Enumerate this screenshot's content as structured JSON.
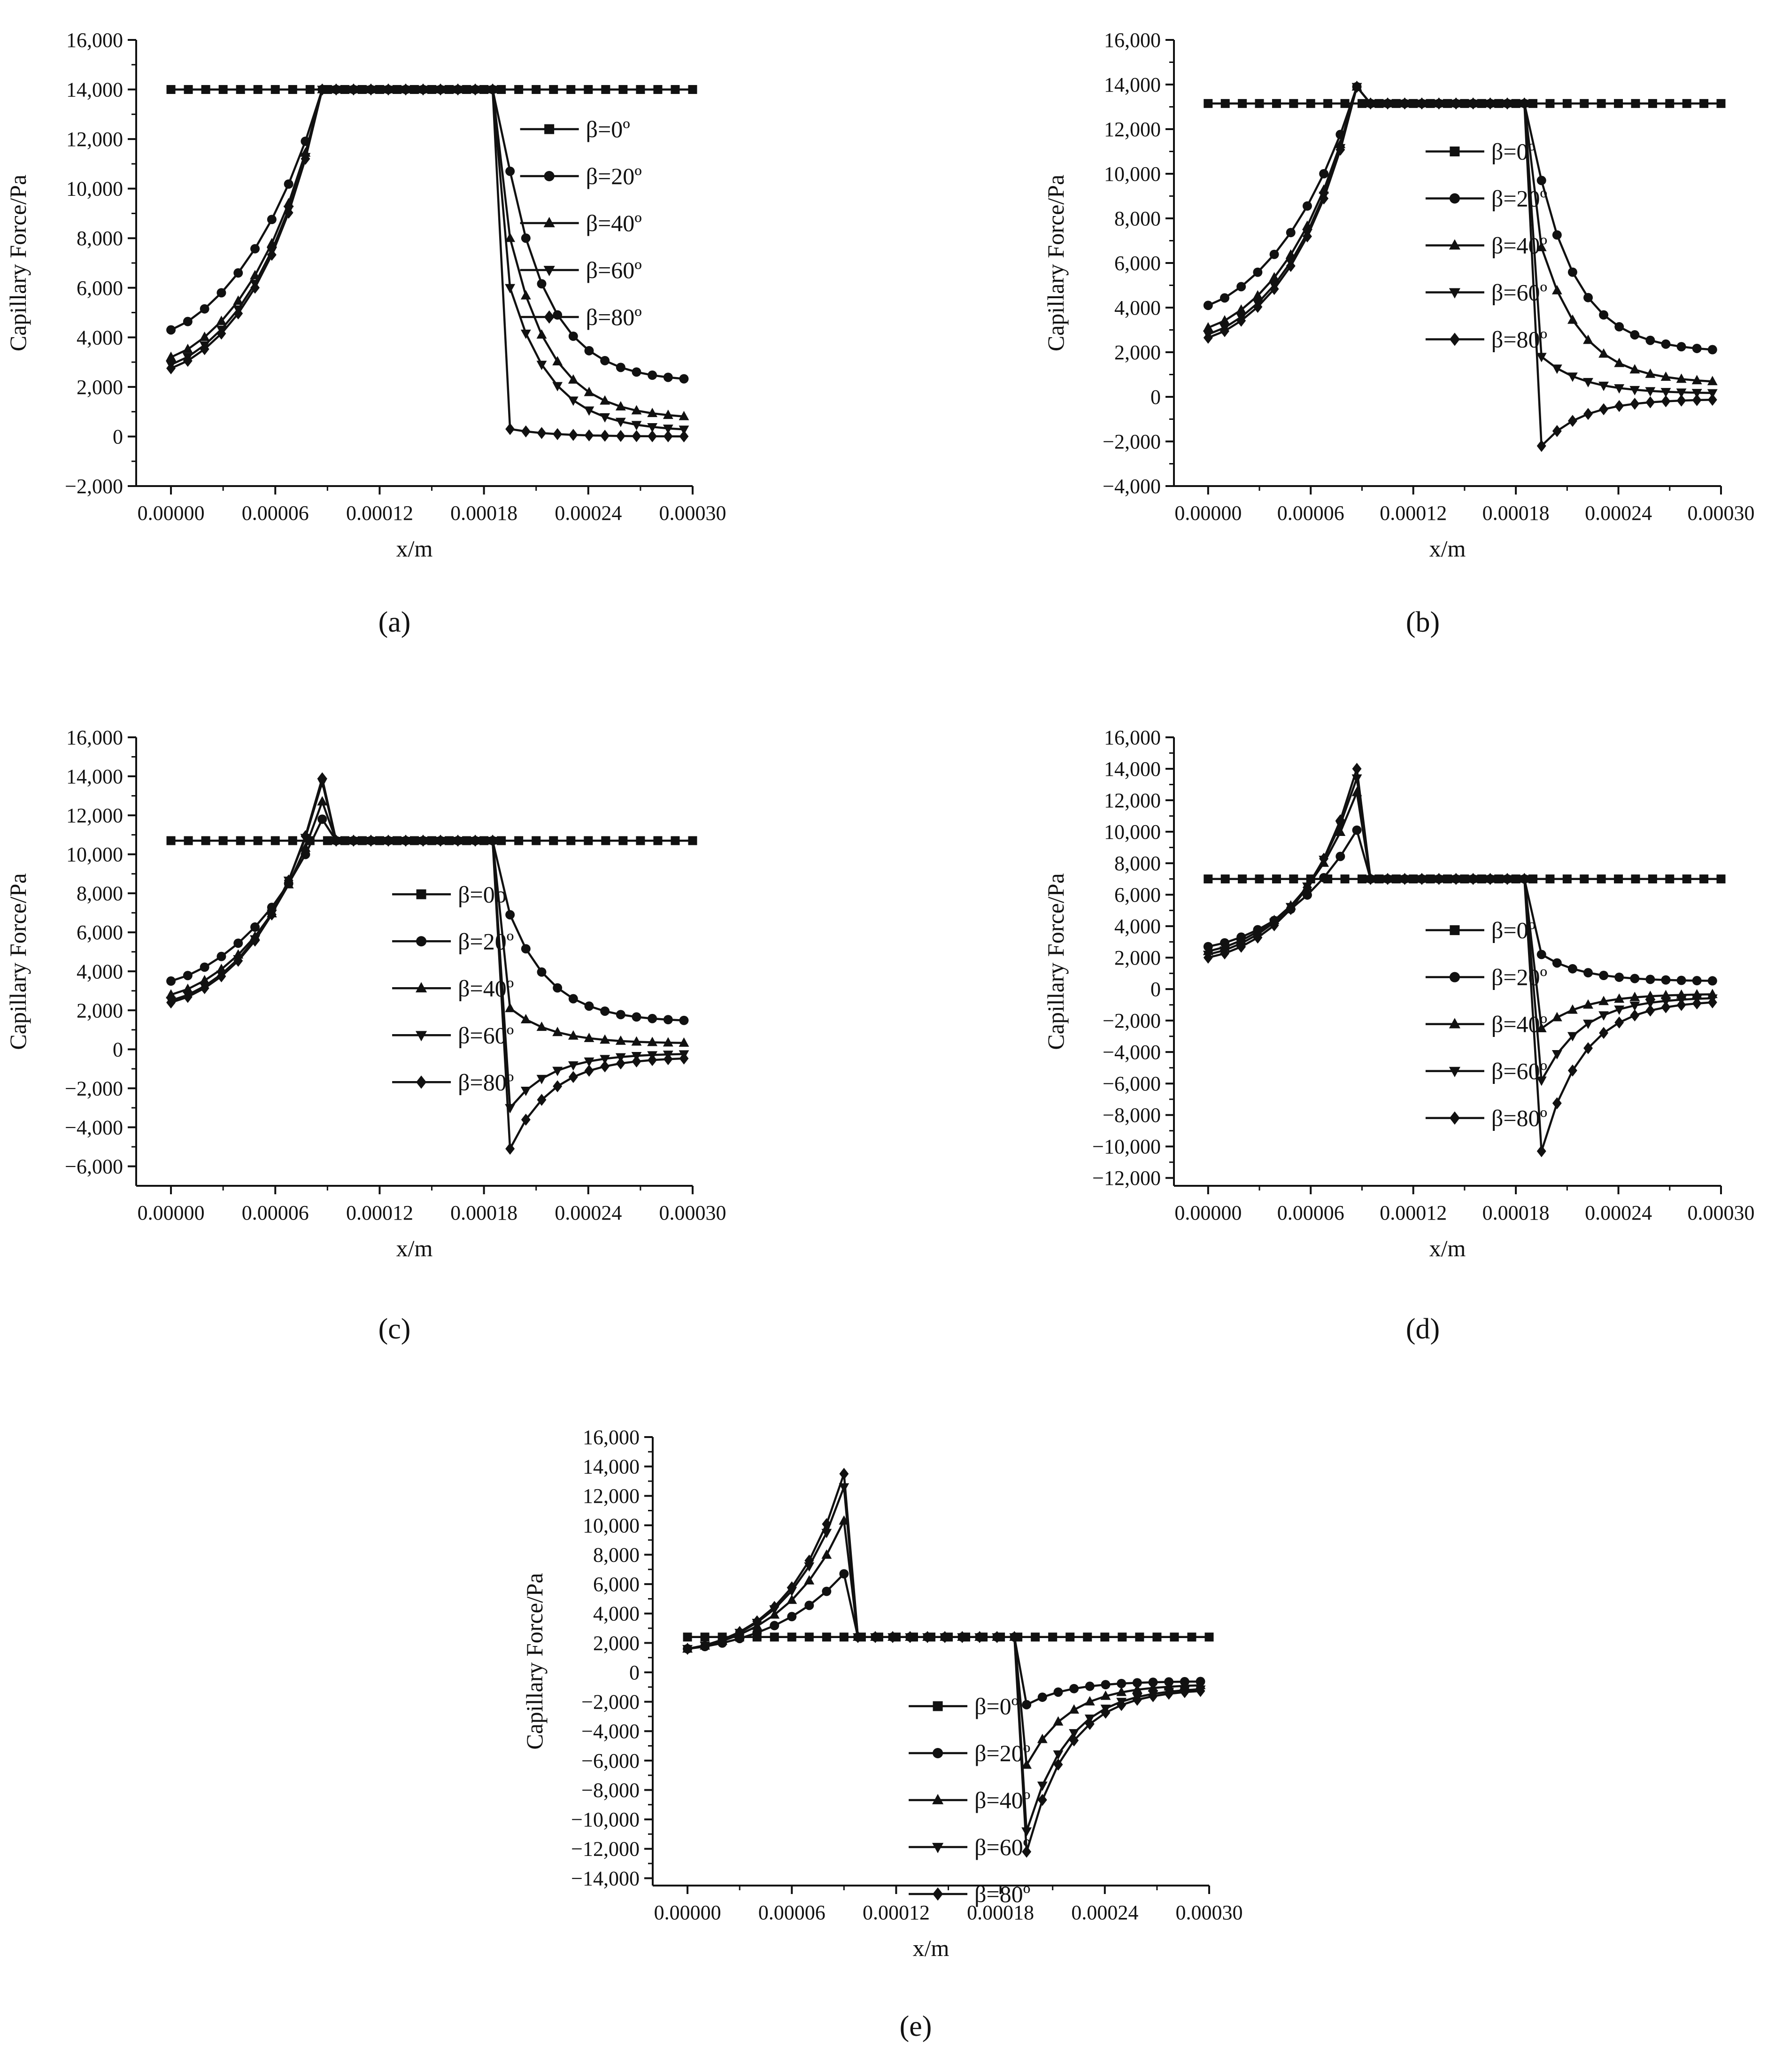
{
  "chart_data": [
    {
      "type": "line",
      "caption": "(a)",
      "caption_letter": "a",
      "xlabel": "x/m",
      "ylabel": "Capillary Force/Pa",
      "xlim": [
        -2e-05,
        0.0003
      ],
      "ylim": [
        -2000,
        16000
      ],
      "xticks": [
        0,
        6e-05,
        0.00012,
        0.00018,
        0.00024,
        0.0003
      ],
      "xtick_labels": [
        "0.00000",
        "0.00006",
        "0.00012",
        "0.00018",
        "0.00024",
        "0.00030"
      ],
      "yticks": [
        -2000,
        0,
        2000,
        4000,
        6000,
        8000,
        10000,
        12000,
        14000,
        16000
      ],
      "ytick_labels": [
        "−2,000",
        "0",
        "2,000",
        "4,000",
        "6,000",
        "8,000",
        "10,000",
        "12,000",
        "14,000",
        "16,000"
      ],
      "legend_position": "right",
      "legend_from_top": 0.2,
      "flat_level": 14000,
      "peak_x": 8.7e-05,
      "series": [
        {
          "name": "β=0º",
          "marker": "square",
          "values": "constant 14000"
        },
        {
          "name": "β=20º",
          "marker": "circle",
          "start": 4300,
          "peak": 14000,
          "drop": 10700,
          "end": 2200
        },
        {
          "name": "β=40º",
          "marker": "triangle-up",
          "start": 3200,
          "peak": 14000,
          "drop": 8000,
          "end": 700
        },
        {
          "name": "β=60º",
          "marker": "triangle-down",
          "start": 2900,
          "peak": 14000,
          "drop": 6000,
          "end": 200
        },
        {
          "name": "β=80º",
          "marker": "diamond",
          "start": 2750,
          "peak": 14000,
          "drop": 300,
          "end": 0
        }
      ]
    },
    {
      "type": "line",
      "caption": "(b)",
      "caption_letter": "b",
      "xlabel": "x/m",
      "ylabel": "Capillary Force/Pa",
      "xlim": [
        -2e-05,
        0.0003
      ],
      "ylim": [
        -4000,
        16000
      ],
      "xticks": [
        0,
        6e-05,
        0.00012,
        0.00018,
        0.00024,
        0.0003
      ],
      "xtick_labels": [
        "0.00000",
        "0.00006",
        "0.00012",
        "0.00018",
        "0.00024",
        "0.00030"
      ],
      "yticks": [
        -4000,
        -2000,
        0,
        2000,
        4000,
        6000,
        8000,
        10000,
        12000,
        14000,
        16000
      ],
      "ytick_labels": [
        "−4,000",
        "−2,000",
        "0",
        "2,000",
        "4,000",
        "6,000",
        "8,000",
        "10,000",
        "12,000",
        "14,000",
        "16,000"
      ],
      "legend_position": "center",
      "legend_from_top": 0.25,
      "flat_level": 13150,
      "peak_x": 8.7e-05,
      "series": [
        {
          "name": "β=0º",
          "marker": "square",
          "values": "constant 13150"
        },
        {
          "name": "β=20º",
          "marker": "circle",
          "start": 4100,
          "peak": 13900,
          "drop": 9700,
          "end": 2000
        },
        {
          "name": "β=40º",
          "marker": "triangle-up",
          "start": 3100,
          "peak": 13900,
          "drop": 6700,
          "end": 600
        },
        {
          "name": "β=60º",
          "marker": "triangle-down",
          "start": 2800,
          "peak": 13900,
          "drop": 1800,
          "end": 150
        },
        {
          "name": "β=80º",
          "marker": "diamond",
          "start": 2650,
          "peak": 13900,
          "drop": -2200,
          "end": -100
        }
      ]
    },
    {
      "type": "line",
      "caption": "(c)",
      "caption_letter": "c",
      "xlabel": "x/m",
      "ylabel": "Capillary Force/Pa",
      "xlim": [
        -2e-05,
        0.0003
      ],
      "ylim": [
        -7000,
        16000
      ],
      "xticks": [
        0,
        6e-05,
        0.00012,
        0.00018,
        0.00024,
        0.0003
      ],
      "xtick_labels": [
        "0.00000",
        "0.00006",
        "0.00012",
        "0.00018",
        "0.00024",
        "0.00030"
      ],
      "yticks": [
        -6000,
        -4000,
        -2000,
        0,
        2000,
        4000,
        6000,
        8000,
        10000,
        12000,
        14000,
        16000
      ],
      "ytick_labels": [
        "−6,000",
        "−4,000",
        "−2,000",
        "0",
        "2,000",
        "4,000",
        "6,000",
        "8,000",
        "10,000",
        "12,000",
        "14,000",
        "16,000"
      ],
      "legend_position": "center",
      "legend_from_top": 0.35,
      "flat_level": 10700,
      "peak_x": 8.7e-05,
      "series": [
        {
          "name": "β=0o",
          "marker": "square",
          "values": "constant 10700"
        },
        {
          "name": "β=20º",
          "marker": "circle",
          "start": 3500,
          "peak": 11800,
          "drop": 6900,
          "end": 1400
        },
        {
          "name": "β=40º",
          "marker": "triangle-up",
          "start": 2800,
          "peak": 12700,
          "drop": 2100,
          "end": 300
        },
        {
          "name": "β=60º",
          "marker": "triangle-down",
          "start": 2500,
          "peak": 13700,
          "drop": -3000,
          "end": -200
        },
        {
          "name": "β=80º",
          "marker": "diamond",
          "start": 2400,
          "peak": 13900,
          "drop": -5100,
          "end": -400
        }
      ]
    },
    {
      "type": "line",
      "caption": "(d)",
      "caption_letter": "d",
      "xlabel": "x/m",
      "ylabel": "Capillary Force/Pa",
      "xlim": [
        -2e-05,
        0.0003
      ],
      "ylim": [
        -12500,
        16000
      ],
      "xticks": [
        0,
        6e-05,
        0.00012,
        0.00018,
        0.00024,
        0.0003
      ],
      "xtick_labels": [
        "0.00000",
        "0.00006",
        "0.00012",
        "0.00018",
        "0.00024",
        "0.00030"
      ],
      "yticks": [
        -12000,
        -10000,
        -8000,
        -6000,
        -4000,
        -2000,
        0,
        2000,
        4000,
        6000,
        8000,
        10000,
        12000,
        14000,
        16000
      ],
      "ytick_labels": [
        "−12,000",
        "−10,000",
        "−8,000",
        "−6,000",
        "−4,000",
        "−2,000",
        "0",
        "2,000",
        "4,000",
        "6,000",
        "8,000",
        "10,000",
        "12,000",
        "14,000",
        "16,000"
      ],
      "legend_position": "center",
      "legend_from_top": 0.43,
      "flat_level": 7000,
      "peak_x": 8.7e-05,
      "series": [
        {
          "name": "β=0º",
          "marker": "square",
          "values": "constant 7000"
        },
        {
          "name": "β=20º",
          "marker": "circle",
          "start": 2700,
          "peak": 10100,
          "drop": 2200,
          "end": 500
        },
        {
          "name": "β=40º",
          "marker": "triangle-up",
          "start": 2400,
          "peak": 12500,
          "drop": -2500,
          "end": -300
        },
        {
          "name": "β=60º",
          "marker": "triangle-down",
          "start": 2200,
          "peak": 13400,
          "drop": -5800,
          "end": -500
        },
        {
          "name": "β=80º",
          "marker": "diamond",
          "start": 2000,
          "peak": 14000,
          "drop": -10300,
          "end": -700
        }
      ]
    },
    {
      "type": "line",
      "caption": "(e)",
      "caption_letter": "e",
      "xlabel": "x/m",
      "ylabel": "Capillary Force/Pa",
      "xlim": [
        -2e-05,
        0.0003
      ],
      "ylim": [
        -14500,
        16000
      ],
      "xticks": [
        0,
        6e-05,
        0.00012,
        0.00018,
        0.00024,
        0.0003
      ],
      "xtick_labels": [
        "0.00000",
        "0.00006",
        "0.00012",
        "0.00018",
        "0.00024",
        "0.00030"
      ],
      "yticks": [
        -14000,
        -12000,
        -10000,
        -8000,
        -6000,
        -4000,
        -2000,
        0,
        2000,
        4000,
        6000,
        8000,
        10000,
        12000,
        14000,
        16000
      ],
      "ytick_labels": [
        "−14,000",
        "−12,000",
        "−10,000",
        "−8,000",
        "−6,000",
        "−4,000",
        "−2,000",
        "0",
        "2,000",
        "4,000",
        "6,000",
        "8,000",
        "10,000",
        "12,000",
        "14,000",
        "16,000"
      ],
      "legend_position": "center",
      "legend_from_top": 0.6,
      "flat_level": 2400,
      "peak_x": 9e-05,
      "series": [
        {
          "name": "β=0º",
          "marker": "square",
          "values": "constant 2400"
        },
        {
          "name": "β=20º",
          "marker": "circle",
          "start": 1600,
          "peak": 6700,
          "drop": -2200,
          "end": -600
        },
        {
          "name": "β=40º",
          "marker": "triangle-up",
          "start": 1600,
          "peak": 10300,
          "drop": -6300,
          "end": -800
        },
        {
          "name": "β=60º",
          "marker": "triangle-down",
          "start": 1600,
          "peak": 12600,
          "drop": -10800,
          "end": -1000
        },
        {
          "name": "β=80º",
          "marker": "diamond",
          "start": 1600,
          "peak": 13500,
          "drop": -12200,
          "end": -1100
        }
      ]
    }
  ]
}
